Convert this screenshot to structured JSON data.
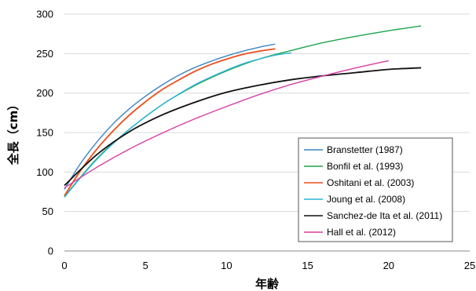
{
  "chart_data": {
    "type": "line",
    "title": "",
    "xlabel": "年齢",
    "ylabel": "全長（cm）",
    "xlim": [
      0,
      25
    ],
    "ylim": [
      0,
      300
    ],
    "x_ticks": [
      "0",
      "5",
      "10",
      "15",
      "20",
      "25"
    ],
    "y_ticks": [
      "0",
      "50",
      "100",
      "150",
      "200",
      "250",
      "300"
    ],
    "grid": "horizontal",
    "legend_position": "bottom-right",
    "series": [
      {
        "name": "Branstetter (1987)",
        "color": "#3a86c4",
        "points": [
          [
            0,
            78
          ],
          [
            1,
            111
          ],
          [
            2,
            138
          ],
          [
            3,
            161
          ],
          [
            4,
            180
          ],
          [
            5,
            196
          ],
          [
            6,
            210
          ],
          [
            7,
            222
          ],
          [
            8,
            232
          ],
          [
            9,
            240
          ],
          [
            10,
            247
          ],
          [
            11,
            253
          ],
          [
            12,
            258
          ],
          [
            13,
            262
          ]
        ]
      },
      {
        "name": "Bonfil et al. (1993)",
        "color": "#1ea34f",
        "points": [
          [
            0,
            69
          ],
          [
            2,
            117
          ],
          [
            4,
            154
          ],
          [
            6,
            185
          ],
          [
            8,
            209
          ],
          [
            10,
            228
          ],
          [
            12,
            243
          ],
          [
            14,
            254
          ],
          [
            16,
            264
          ],
          [
            18,
            272
          ],
          [
            20,
            279
          ],
          [
            22,
            285
          ]
        ]
      },
      {
        "name": "Oshitani et al. (2003)",
        "color": "#ee4e1c",
        "points": [
          [
            0,
            70
          ],
          [
            1,
            102
          ],
          [
            2,
            129
          ],
          [
            3,
            152
          ],
          [
            4,
            172
          ],
          [
            5,
            189
          ],
          [
            6,
            204
          ],
          [
            7,
            216
          ],
          [
            8,
            227
          ],
          [
            9,
            236
          ],
          [
            10,
            243
          ],
          [
            11,
            249
          ],
          [
            12,
            253
          ],
          [
            13,
            256
          ]
        ]
      },
      {
        "name": "Joung et al. (2008)",
        "color": "#29b5d6",
        "points": [
          [
            0,
            68
          ],
          [
            1,
            93
          ],
          [
            2,
            116
          ],
          [
            3,
            136
          ],
          [
            4,
            154
          ],
          [
            5,
            170
          ],
          [
            6,
            185
          ],
          [
            7,
            198
          ],
          [
            8,
            210
          ],
          [
            9,
            220
          ],
          [
            10,
            229
          ],
          [
            11,
            237
          ],
          [
            12,
            243
          ],
          [
            13,
            248
          ],
          [
            14,
            251
          ]
        ]
      },
      {
        "name": "Sanchez-de Ita et al. (2011)",
        "color": "#111111",
        "points": [
          [
            0,
            83
          ],
          [
            2,
            122
          ],
          [
            4,
            151
          ],
          [
            6,
            172
          ],
          [
            8,
            188
          ],
          [
            10,
            201
          ],
          [
            12,
            210
          ],
          [
            14,
            217
          ],
          [
            16,
            222
          ],
          [
            18,
            226
          ],
          [
            20,
            230
          ],
          [
            22,
            232
          ]
        ]
      },
      {
        "name": "Hall et al. (2012)",
        "color": "#d63fa4",
        "points": [
          [
            0,
            80
          ],
          [
            2,
            106
          ],
          [
            4,
            129
          ],
          [
            6,
            149
          ],
          [
            8,
            167
          ],
          [
            10,
            183
          ],
          [
            12,
            198
          ],
          [
            14,
            211
          ],
          [
            16,
            222
          ],
          [
            18,
            232
          ],
          [
            20,
            241
          ]
        ]
      }
    ]
  }
}
